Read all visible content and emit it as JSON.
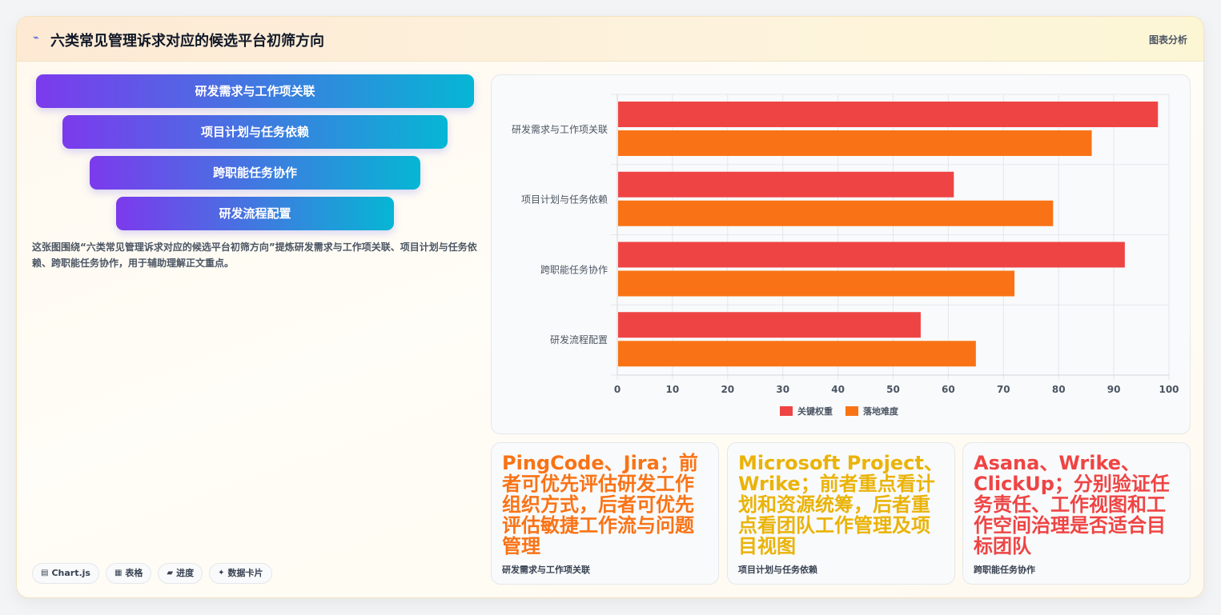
{
  "header": {
    "icon": "chart-line-icon",
    "title": "六类常见管理诉求对应的候选平台初筛方向",
    "tag": "图表分析"
  },
  "funnel": {
    "items": [
      {
        "label": "研发需求与工作项关联"
      },
      {
        "label": "项目计划与任务依赖"
      },
      {
        "label": "跨职能任务协作"
      },
      {
        "label": "研发流程配置"
      }
    ]
  },
  "description": "这张图围绕“六类常见管理诉求对应的候选平台初筛方向”提炼研发需求与工作项关联、项目计划与任务依赖、跨职能任务协作，用于辅助理解正文重点。",
  "chips": [
    {
      "icon": "monitor-icon",
      "glyph": "▤",
      "label": "Chart.js"
    },
    {
      "icon": "table-icon",
      "glyph": "▦",
      "label": "表格"
    },
    {
      "icon": "progress-icon",
      "glyph": "▰",
      "label": "进度"
    },
    {
      "icon": "sparkle-icon",
      "glyph": "✦",
      "label": "数据卡片"
    }
  ],
  "chart_data": {
    "type": "bar",
    "orientation": "horizontal",
    "categories": [
      "研发需求与工作项关联",
      "项目计划与任务依赖",
      "跨职能任务协作",
      "研发流程配置"
    ],
    "series": [
      {
        "name": "关键权重",
        "values": [
          98,
          61,
          92,
          55
        ],
        "color": "#ef4444"
      },
      {
        "name": "落地难度",
        "values": [
          86,
          79,
          72,
          65
        ],
        "color": "#f97316"
      }
    ],
    "xlim": [
      0,
      100
    ],
    "xticks": [
      0,
      10,
      20,
      30,
      40,
      50,
      60,
      70,
      80,
      90,
      100
    ],
    "grid": true,
    "legend_position": "bottom"
  },
  "cards": [
    {
      "value": "PingCode、Jira；前者可优先评估研发工作组织方式，后者可优先评估敏捷工作流与问题管理",
      "label": "研发需求与工作项关联",
      "color": "#f97316"
    },
    {
      "value": "Microsoft Project、Wrike；前者重点看计划和资源统筹，后者重点看团队工作管理及项目视图",
      "label": "项目计划与任务依赖",
      "color": "#eab308"
    },
    {
      "value": "Asana、Wrike、ClickUp；分别验证任务责任、工作视图和工作空间治理是否适合目标团队",
      "label": "跨职能任务协作",
      "color": "#ef4444"
    }
  ]
}
